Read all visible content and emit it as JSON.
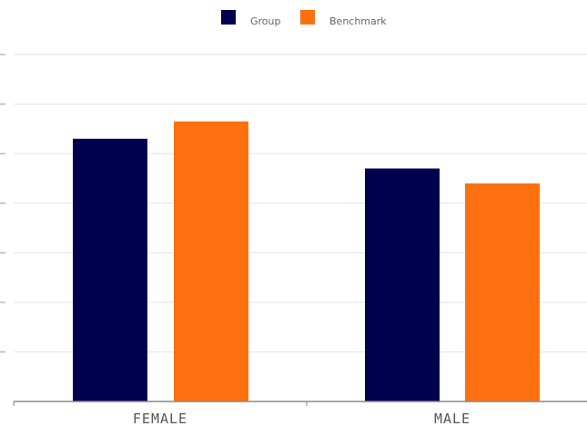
{
  "chart_data": {
    "type": "bar",
    "title": "",
    "xlabel": "",
    "ylabel": "",
    "categories": [
      "FEMALE",
      "MALE"
    ],
    "series": [
      {
        "name": "Group",
        "values": [
          0.53,
          0.47
        ],
        "color": "#000050"
      },
      {
        "name": "Benchmark",
        "values": [
          0.565,
          0.44
        ],
        "color": "#ff7010"
      }
    ],
    "ylim": [
      0,
      0.7
    ],
    "y_tick_step": 0.1,
    "grid": true,
    "legend_position": "top-center"
  }
}
